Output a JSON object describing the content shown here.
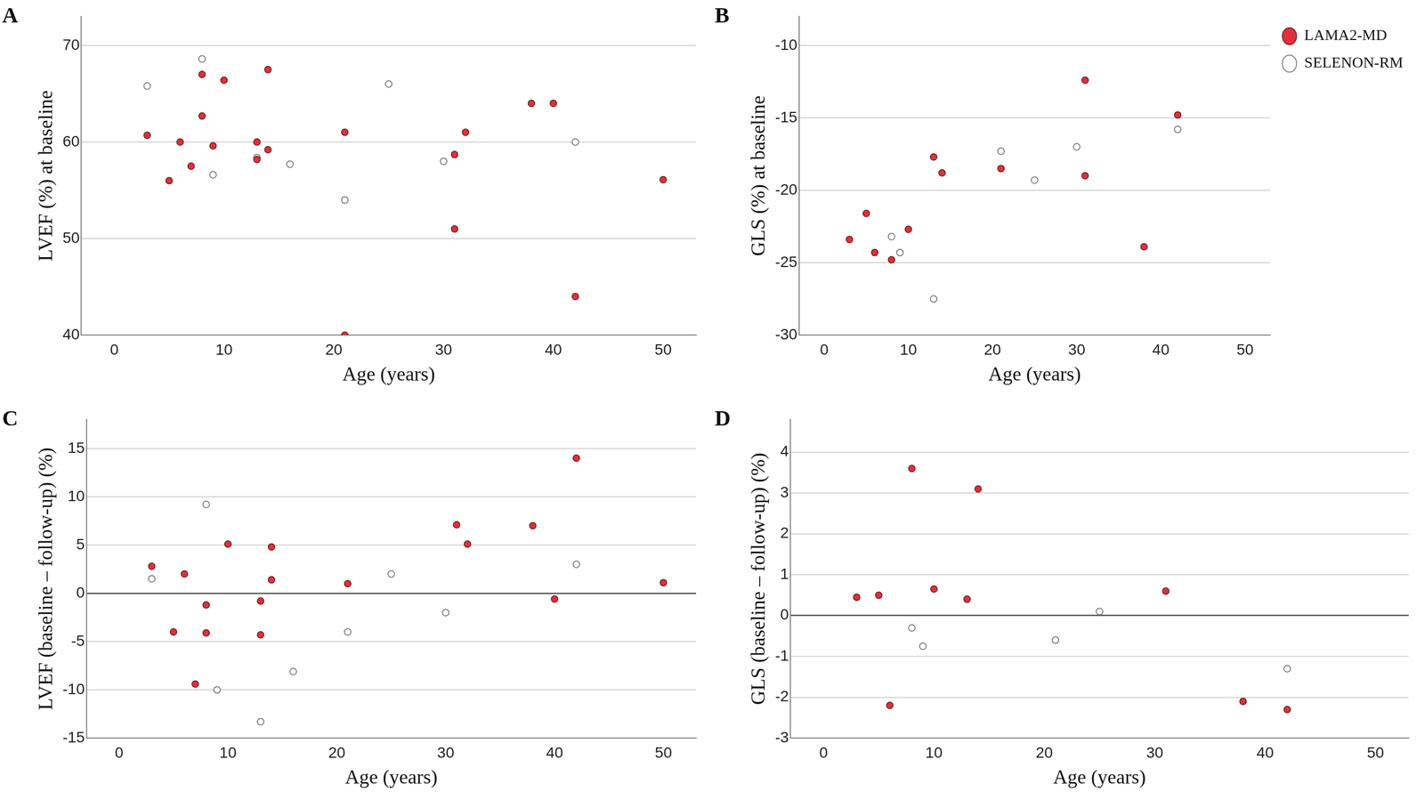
{
  "chart_data": [
    {
      "type": "scatter",
      "title": "A",
      "x_label": "Age (years)",
      "y_label": "LVEF (%) at baseline",
      "xlim": [
        -3,
        53
      ],
      "xticks": [
        0,
        10,
        20,
        30,
        40,
        50
      ],
      "ylim": [
        40,
        73
      ],
      "yticks": [
        40,
        50,
        60,
        70
      ],
      "grid": true,
      "series": [
        {
          "name": "LAMA2-MD",
          "color": "#e0303a",
          "marker": "circle",
          "x": [
            3,
            5,
            6,
            7,
            8,
            8,
            9,
            10,
            13,
            13,
            14,
            14,
            21,
            21,
            31,
            31,
            32,
            38,
            40,
            42,
            50
          ],
          "values": [
            60.7,
            56,
            60,
            57.5,
            67,
            62.7,
            59.6,
            66.4,
            60,
            58.2,
            67.5,
            59.2,
            61,
            40,
            58.7,
            51,
            61,
            64,
            64,
            44,
            56.1
          ]
        },
        {
          "name": "SELENON-RM",
          "color": "#ffffff",
          "marker": "circle",
          "x": [
            3,
            8,
            9,
            13,
            16,
            21,
            25,
            30,
            42
          ],
          "values": [
            65.8,
            68.6,
            56.6,
            58.4,
            57.7,
            54,
            66,
            58,
            60
          ]
        }
      ]
    },
    {
      "type": "scatter",
      "title": "B",
      "x_label": "Age (years)",
      "y_label": "GLS (%) at baseline",
      "xlim": [
        -3,
        53
      ],
      "xticks": [
        0,
        10,
        20,
        30,
        40,
        50
      ],
      "ylim": [
        -30,
        -8
      ],
      "yticks": [
        -30,
        -25,
        -20,
        -15,
        -10
      ],
      "grid": true,
      "legend": "right",
      "series": [
        {
          "name": "LAMA2-MD",
          "color": "#e0303a",
          "marker": "circle",
          "x": [
            3,
            5,
            6,
            8,
            10,
            13,
            14,
            21,
            31,
            31,
            38,
            42
          ],
          "values": [
            -23.4,
            -21.6,
            -24.3,
            -24.8,
            -22.7,
            -17.7,
            -18.8,
            -18.5,
            -12.4,
            -19,
            -23.9,
            -14.8
          ]
        },
        {
          "name": "SELENON-RM",
          "color": "#ffffff",
          "marker": "circle",
          "x": [
            8,
            9,
            13,
            21,
            25,
            30,
            42
          ],
          "values": [
            -23.2,
            -24.3,
            -27.5,
            -17.3,
            -19.3,
            -17,
            -15.8
          ]
        }
      ]
    },
    {
      "type": "scatter",
      "title": "C",
      "x_label": "Age (years)",
      "y_label": "LVEF (baseline – follow-up) (%)",
      "xlim": [
        -3,
        53
      ],
      "xticks": [
        0,
        10,
        20,
        30,
        40,
        50
      ],
      "ylim": [
        -15,
        18
      ],
      "yticks": [
        -15,
        -10,
        -5,
        0,
        5,
        10,
        15
      ],
      "grid": true,
      "series": [
        {
          "name": "LAMA2-MD",
          "color": "#e0303a",
          "marker": "circle",
          "x": [
            3,
            5,
            6,
            7,
            8,
            8,
            10,
            13,
            13,
            14,
            14,
            21,
            31,
            32,
            38,
            40,
            42,
            50
          ],
          "values": [
            2.8,
            -4,
            2,
            -9.4,
            -1.2,
            -4.1,
            5.1,
            -0.8,
            -4.3,
            4.8,
            1.4,
            1,
            7.1,
            5.1,
            7,
            -0.6,
            14,
            1.1
          ]
        },
        {
          "name": "SELENON-RM",
          "color": "#ffffff",
          "marker": "circle",
          "x": [
            3,
            8,
            9,
            13,
            16,
            21,
            25,
            30,
            42
          ],
          "values": [
            1.5,
            9.2,
            -10,
            -13.3,
            -8.1,
            -4,
            2,
            -2,
            3
          ]
        }
      ]
    },
    {
      "type": "scatter",
      "title": "D",
      "x_label": "Age (years)",
      "y_label": "GLS (baseline – follow-up) (%)",
      "xlim": [
        -3,
        53
      ],
      "xticks": [
        0,
        10,
        20,
        30,
        40,
        50
      ],
      "ylim": [
        -3,
        4.8
      ],
      "yticks": [
        -3,
        -2,
        -1,
        0,
        1,
        2,
        3,
        4
      ],
      "grid": true,
      "series": [
        {
          "name": "LAMA2-MD",
          "color": "#e0303a",
          "marker": "circle",
          "x": [
            3,
            5,
            6,
            8,
            10,
            13,
            14,
            31,
            38,
            42
          ],
          "values": [
            0.45,
            0.5,
            -2.2,
            3.6,
            0.65,
            0.4,
            3.1,
            0.6,
            -2.1,
            -2.3
          ]
        },
        {
          "name": "SELENON-RM",
          "color": "#ffffff",
          "marker": "circle",
          "x": [
            8,
            9,
            21,
            25,
            42
          ],
          "values": [
            -0.3,
            -0.75,
            -0.6,
            0.1,
            -1.3
          ]
        }
      ]
    }
  ]
}
